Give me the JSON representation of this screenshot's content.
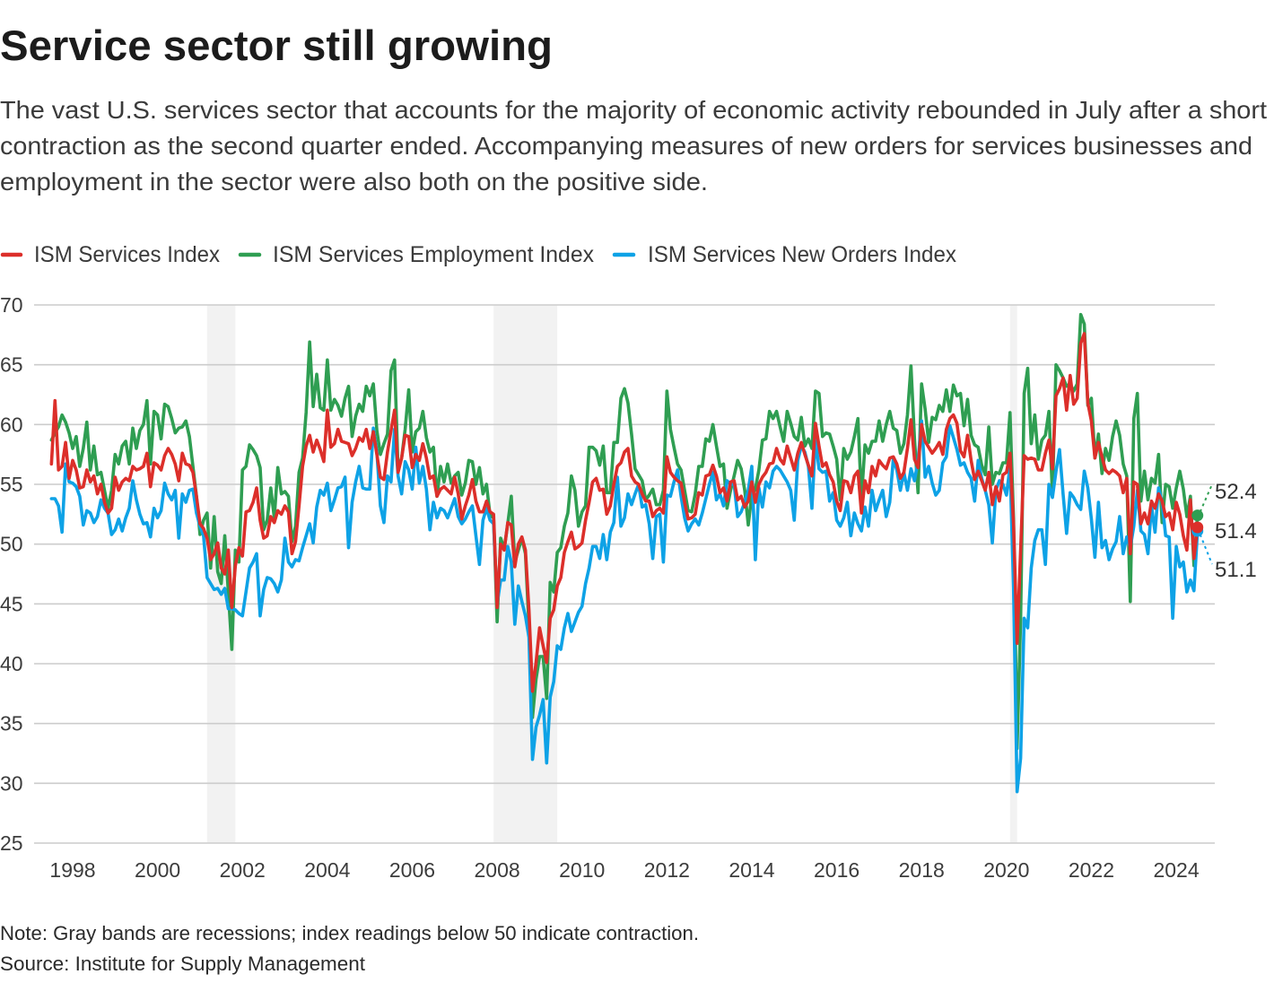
{
  "header": {
    "title": "Service sector still growing",
    "subtitle_lines": [
      "The vast U.S. services sector that accounts for the majority of economic activity rebounded in July after a short",
      "contraction as the second quarter ended. Accompanying measures of new orders for services businesses and",
      "employment in the sector were also both on the positive side."
    ]
  },
  "footer": {
    "note": "Note: Gray bands are recessions; index readings below 50 indicate contraction.",
    "source": "Source: Institute for Supply Management"
  },
  "chart_data": {
    "type": "line",
    "title": "Service sector still growing",
    "xlabel": "",
    "ylabel": "",
    "frequency": "monthly",
    "x_start": "1997-07",
    "x_end": "2024-07",
    "ylim": [
      25,
      70
    ],
    "y_ticks": [
      25,
      30,
      35,
      40,
      45,
      50,
      55,
      60,
      65,
      70
    ],
    "x_ticks": [
      "1998",
      "2000",
      "2002",
      "2004",
      "2006",
      "2008",
      "2010",
      "2012",
      "2014",
      "2016",
      "2018",
      "2020",
      "2022",
      "2024"
    ],
    "grid": true,
    "legend_position": "top-left",
    "recession_color": "#f2f2f2",
    "recessions": [
      {
        "start": "2001-03",
        "end": "2001-11"
      },
      {
        "start": "2007-12",
        "end": "2009-06"
      },
      {
        "start": "2020-02",
        "end": "2020-04"
      }
    ],
    "series": [
      {
        "name": "ISM Services Index",
        "color": "#dc2f2a",
        "values": [
          56.7,
          62.0,
          56.2,
          56.5,
          58.5,
          55.5,
          57.0,
          56.2,
          54.7,
          54.8,
          56.2,
          55.2,
          55.7,
          54.2,
          55.0,
          53.5,
          52.6,
          53.0,
          55.6,
          54.5,
          55.2,
          55.5,
          55.3,
          56.5,
          56.2,
          56.3,
          56.5,
          57.6,
          54.8,
          56.8,
          56.6,
          56.2,
          57.4,
          58.0,
          57.5,
          56.7,
          55.3,
          57.6,
          56.7,
          56.6,
          56.0,
          54.0,
          51.7,
          51.3,
          50.5,
          48.7,
          49.2,
          50.1,
          48.0,
          47.5,
          49.5,
          44.7,
          48.2,
          49.7,
          49.0,
          52.7,
          52.8,
          53.5,
          54.7,
          52.0,
          50.5,
          50.7,
          52.3,
          51.8,
          52.8,
          52.5,
          53.2,
          52.7,
          49.2,
          50.2,
          53.2,
          56.5,
          58.2,
          59.1,
          57.7,
          58.7,
          57.9,
          56.9,
          61.2,
          58.1,
          58.4,
          59.6,
          58.6,
          58.5,
          58.4,
          57.4,
          58.0,
          58.9,
          58.6,
          59.6,
          58.0,
          59.4,
          57.5,
          55.6,
          55.4,
          57.7,
          59.5,
          61.2,
          56.0,
          57.2,
          59.1,
          59.0,
          56.4,
          57.5,
          57.0,
          58.4,
          57.2,
          55.5,
          55.7,
          54.0,
          54.6,
          54.8,
          54.5,
          54.2,
          55.6,
          54.2,
          52.1,
          53.2,
          54.1,
          55.4,
          53.6,
          52.7,
          52.7,
          53.6,
          52.7,
          52.5,
          44.7,
          50.0,
          49.5,
          51.8,
          51.6,
          48.1,
          50.0,
          50.6,
          49.5,
          44.5,
          37.7,
          40.1,
          43.0,
          41.5,
          40.1,
          43.8,
          44.5,
          46.5,
          47.2,
          49.3,
          50.2,
          51.0,
          49.6,
          49.8,
          50.1,
          52.0,
          53.5,
          55.2,
          55.5,
          54.5,
          54.6,
          52.5,
          53.2,
          55.0,
          56.5,
          56.8,
          57.7,
          58.0,
          55.7,
          55.2,
          55.0,
          54.2,
          53.6,
          53.6,
          52.3,
          52.8,
          53.0,
          52.6,
          57.3,
          56.0,
          55.6,
          55.3,
          55.1,
          53.5,
          52.1,
          52.2,
          52.5,
          54.3,
          54.1,
          55.7,
          55.8,
          56.6,
          55.7,
          54.3,
          54.7,
          53.6,
          55.2,
          55.3,
          53.7,
          54.0,
          53.1,
          53.6,
          55.2,
          53.5,
          55.0,
          55.6,
          56.0,
          56.7,
          56.8,
          58.0,
          57.1,
          56.7,
          58.2,
          57.2,
          56.2,
          57.6,
          58.5,
          57.5,
          56.6,
          55.7,
          60.1,
          58.2,
          56.5,
          56.8,
          55.8,
          55.2,
          53.6,
          52.8,
          55.3,
          55.2,
          54.3,
          55.7,
          56.1,
          52.6,
          55.3,
          54.3,
          56.5,
          55.7,
          57.0,
          56.6,
          56.3,
          57.2,
          57.3,
          56.7,
          55.5,
          56.0,
          58.0,
          60.4,
          57.1,
          56.4,
          60.0,
          58.6,
          58.1,
          57.6,
          58.0,
          58.5,
          57.5,
          59.6,
          60.5,
          60.8,
          60.1,
          57.8,
          57.3,
          59.1,
          57.0,
          55.4,
          56.1,
          55.3,
          54.5,
          56.0,
          53.3,
          54.8,
          53.6,
          55.8,
          56.0,
          57.6,
          51.6,
          41.7,
          49.5,
          57.4,
          57.1,
          57.2,
          57.1,
          56.2,
          56.2,
          57.6,
          58.7,
          56.3,
          62.4,
          63.0,
          63.9,
          61.2,
          64.1,
          61.7,
          62.2,
          66.8,
          67.6,
          61.8,
          60.3,
          57.2,
          58.5,
          57.3,
          56.2,
          55.9,
          56.2,
          56.0,
          55.7,
          54.3,
          55.5,
          49.2,
          55.2,
          55.0,
          51.7,
          52.6,
          51.7,
          53.6,
          53.0,
          54.2,
          53.6,
          52.3,
          52.6,
          51.2,
          53.5,
          52.5,
          50.7,
          49.5,
          53.7,
          48.8,
          51.4
        ]
      },
      {
        "name": "ISM Services Employment Index",
        "color": "#2f9e52",
        "values": [
          58.7,
          59.3,
          59.8,
          60.8,
          60.2,
          59.3,
          58.0,
          59.0,
          56.5,
          58.0,
          60.2,
          56.2,
          58.2,
          55.8,
          56.0,
          54.5,
          53.0,
          54.5,
          57.5,
          56.7,
          58.2,
          58.6,
          56.7,
          59.7,
          58.0,
          59.5,
          60.0,
          62.0,
          56.7,
          61.1,
          60.8,
          58.8,
          61.7,
          61.5,
          60.5,
          59.3,
          59.7,
          59.8,
          60.3,
          59.0,
          56.5,
          54.0,
          50.8,
          52.0,
          52.6,
          48.0,
          52.3,
          47.7,
          46.7,
          50.7,
          46.0,
          41.2,
          49.5,
          48.5,
          56.2,
          56.5,
          58.3,
          57.9,
          57.4,
          56.4,
          51.2,
          52.0,
          54.7,
          52.2,
          56.4,
          54.2,
          54.4,
          54.0,
          50.2,
          51.5,
          56.0,
          57.2,
          61.0,
          66.9,
          61.5,
          64.2,
          61.4,
          61.2,
          65.4,
          61.2,
          62.1,
          61.6,
          60.7,
          62.2,
          63.2,
          59.0,
          60.7,
          61.7,
          61.1,
          63.2,
          62.4,
          63.4,
          59.5,
          57.5,
          58.4,
          59.2,
          64.5,
          65.4,
          56.2,
          57.2,
          59.6,
          62.9,
          57.7,
          59.4,
          59.7,
          61.1,
          58.9,
          57.7,
          58.1,
          54.0,
          56.5,
          55.2,
          56.7,
          55.1,
          55.7,
          56.0,
          54.1,
          55.1,
          57.0,
          56.9,
          55.0,
          56.4,
          54.2,
          55.0,
          52.4,
          52.2,
          43.5,
          50.5,
          49.6,
          51.7,
          54.0,
          48.5,
          49.5,
          50.5,
          49.2,
          43.2,
          35.5,
          38.7,
          40.6,
          40.6,
          37.1,
          46.8,
          46.0,
          49.3,
          49.7,
          51.5,
          52.6,
          55.7,
          54.5,
          51.5,
          52.7,
          53.2,
          58.1,
          58.1,
          57.8,
          56.6,
          58.2,
          54.3,
          54.3,
          58.5,
          58.5,
          62.2,
          63.0,
          61.8,
          59.2,
          56.3,
          55.8,
          55.3,
          53.7,
          54.1,
          54.6,
          53.3,
          53.3,
          54.5,
          62.8,
          59.6,
          58.1,
          56.7,
          56.2,
          54.5,
          52.8,
          52.7,
          54.2,
          56.5,
          56.5,
          58.8,
          58.6,
          60.0,
          58.2,
          56.5,
          56.7,
          53.0,
          54.5,
          55.7,
          57.0,
          56.3,
          54.5,
          51.6,
          54.1,
          54.6,
          56.2,
          58.7,
          58.8,
          61.1,
          60.5,
          61.1,
          59.8,
          58.6,
          61.1,
          60.1,
          59.0,
          58.7,
          60.6,
          58.2,
          58.8,
          58.0,
          62.8,
          62.6,
          59.0,
          59.3,
          59.2,
          58.2,
          57.1,
          53.7,
          58.0,
          57.1,
          57.7,
          59.0,
          60.5,
          53.8,
          58.3,
          57.6,
          58.6,
          58.6,
          60.3,
          58.6,
          60.0,
          61.1,
          59.7,
          59.5,
          57.6,
          58.4,
          60.8,
          64.9,
          58.8,
          54.3,
          63.4,
          61.3,
          58.5,
          60.6,
          60.4,
          61.6,
          61.1,
          62.9,
          61.1,
          63.3,
          62.4,
          62.6,
          59.9,
          62.1,
          59.1,
          58.3,
          58.1,
          56.6,
          55.8,
          59.8,
          55.0,
          56.0,
          55.9,
          56.8,
          56.8,
          61.0,
          52.0,
          32.9,
          43.7,
          62.6,
          64.7,
          58.4,
          60.8,
          57.1,
          58.7,
          59.1,
          61.1,
          54.1,
          65.0,
          64.5,
          63.9,
          63.2,
          63.4,
          62.8,
          63.4,
          69.2,
          68.4,
          61.6,
          62.2,
          57.2,
          59.2,
          55.9,
          58.0,
          57.0,
          59.0,
          60.3,
          59.1,
          56.7,
          55.7,
          45.2,
          60.5,
          62.6,
          53.6,
          56.1,
          53.7,
          55.5,
          55.1,
          57.5,
          51.8,
          55.0,
          54.8,
          53.0,
          54.7,
          56.1,
          54.6,
          52.3,
          54.0,
          48.2,
          52.4
        ]
      },
      {
        "name": "ISM Services New Orders Index",
        "color": "#0ea2e6",
        "values": [
          53.8,
          53.8,
          53.2,
          51.0,
          56.7,
          55.2,
          55.1,
          54.8,
          54.0,
          51.6,
          52.8,
          52.6,
          51.8,
          52.3,
          53.7,
          53.0,
          52.6,
          50.8,
          51.2,
          52.1,
          51.1,
          52.2,
          53.0,
          55.3,
          53.7,
          52.5,
          51.7,
          51.8,
          50.6,
          53.0,
          52.2,
          52.8,
          55.1,
          54.2,
          53.7,
          54.5,
          50.5,
          54.2,
          53.5,
          54.5,
          54.6,
          52.6,
          51.5,
          50.7,
          47.2,
          46.7,
          46.2,
          46.3,
          45.8,
          46.3,
          44.6,
          44.6,
          44.5,
          44.2,
          44.0,
          46.0,
          48.0,
          48.5,
          49.2,
          44.0,
          46.2,
          47.2,
          47.1,
          46.7,
          46.0,
          47.0,
          50.5,
          48.5,
          48.1,
          48.7,
          48.6,
          49.7,
          50.7,
          51.7,
          50.1,
          53.1,
          54.5,
          54.1,
          55.1,
          52.8,
          53.7,
          54.7,
          54.8,
          55.6,
          49.7,
          53.5,
          55.2,
          56.5,
          54.7,
          54.6,
          54.6,
          59.7,
          57.7,
          53.2,
          51.8,
          55.7,
          55.2,
          59.6,
          55.7,
          54.2,
          56.9,
          56.2,
          54.6,
          58.1,
          55.1,
          56.5,
          54.6,
          51.2,
          53.5,
          52.2,
          53.0,
          52.8,
          52.2,
          53.0,
          53.8,
          52.3,
          51.7,
          52.1,
          52.7,
          53.2,
          50.7,
          48.3,
          52.0,
          53.0,
          52.0,
          51.7,
          45.0,
          47.0,
          47.0,
          49.8,
          48.5,
          43.3,
          46.5,
          45.2,
          44.0,
          42.2,
          32.0,
          34.7,
          35.7,
          37.0,
          31.7,
          37.2,
          38.5,
          41.5,
          41.2,
          43.0,
          44.2,
          42.7,
          43.5,
          44.3,
          44.8,
          46.7,
          48.0,
          49.8,
          49.8,
          48.8,
          50.8,
          48.7,
          51.0,
          51.8,
          55.6,
          51.5,
          52.2,
          54.2,
          53.3,
          54.2,
          55.0,
          53.1,
          53.3,
          51.7,
          48.8,
          52.3,
          52.5,
          48.5,
          54.1,
          54.0,
          55.2,
          56.2,
          54.0,
          52.2,
          51.1,
          51.7,
          52.1,
          51.6,
          52.6,
          53.8,
          55.0,
          56.0,
          53.7,
          54.2,
          53.2,
          55.3,
          55.0,
          55.0,
          52.3,
          52.7,
          53.5,
          54.5,
          56.5,
          48.7,
          54.7,
          53.1,
          55.2,
          54.7,
          56.1,
          56.5,
          56.2,
          55.7,
          55.2,
          54.5,
          52.0,
          57.0,
          58.2,
          57.7,
          56.5,
          53.0,
          58.8,
          56.3,
          56.0,
          56.1,
          53.6,
          54.3,
          52.0,
          51.5,
          52.2,
          53.5,
          50.7,
          52.6,
          51.7,
          51.1,
          53.1,
          51.5,
          54.5,
          52.8,
          53.7,
          54.5,
          52.3,
          53.5,
          57.1,
          56.2,
          54.5,
          56.0,
          54.5,
          56.3,
          55.3,
          57.0,
          60.3,
          55.6,
          56.5,
          55.1,
          54.1,
          54.5,
          56.8,
          57.3,
          59.9,
          58.9,
          57.9,
          56.6,
          56.8,
          56.0,
          55.5,
          53.6,
          57.0,
          55.5,
          54.5,
          53.3,
          50.1,
          54.5,
          55.3,
          55.0,
          54.1,
          56.5,
          46.3,
          29.3,
          32.1,
          43.8,
          43.0,
          48.0,
          50.3,
          51.2,
          51.2,
          48.3,
          55.0,
          53.9,
          56.1,
          57.9,
          54.2,
          50.9,
          54.3,
          53.9,
          53.3,
          52.9,
          56.1,
          54.7,
          52.1,
          48.9,
          53.5,
          49.7,
          50.3,
          48.7,
          49.6,
          50.2,
          52.3,
          49.2,
          50.6,
          49.7,
          51.5,
          54.5,
          51.1,
          50.8,
          49.2,
          53.2,
          51.0,
          54.7,
          53.5,
          50.7,
          50.6,
          43.8,
          49.8,
          48.1,
          48.5,
          46.0,
          47.0,
          46.1,
          51.1
        ]
      }
    ],
    "end_labels": [
      {
        "series_index": 1,
        "text": "52.4"
      },
      {
        "series_index": 0,
        "text": "51.4"
      },
      {
        "series_index": 2,
        "text": "51.1"
      }
    ]
  }
}
